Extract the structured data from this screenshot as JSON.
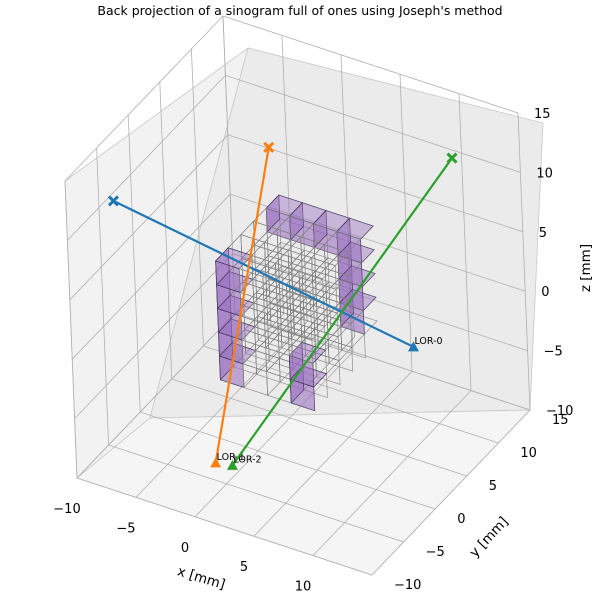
{
  "chart_data": {
    "type": "3d-voxels-lines",
    "title": "Back projection of a sinogram full of ones using Joseph's method",
    "xlabel": "x [mm]",
    "ylabel": "y [mm]",
    "zlabel": "z [mm]",
    "xticks": [
      "−10",
      "−5",
      "0",
      "5",
      "10"
    ],
    "yticks": [
      "−10",
      "−5",
      "0",
      "5",
      "10",
      "15"
    ],
    "zticks": [
      "−10",
      "−5",
      "0",
      "5",
      "10",
      "15"
    ],
    "grid": true,
    "lors": [
      {
        "label": "LOR-0",
        "color": "#1f77b4",
        "start": [
          -11,
          -1,
          8
        ],
        "end": [
          12,
          3,
          1
        ]
      },
      {
        "label": "LOR-1",
        "color": "#ff7f0e",
        "start": [
          -2,
          7,
          11
        ],
        "end": [
          -2,
          -3,
          -10
        ]
      },
      {
        "label": "LOR-2",
        "color": "#2ca02c",
        "start": [
          12,
          10,
          13
        ],
        "end": [
          0,
          -4,
          -9
        ]
      }
    ],
    "voxel_grid": {
      "nx": 4,
      "ny": 5,
      "nz": 5,
      "origin": [
        -3,
        0,
        -5
      ],
      "size": 2
    },
    "filled_voxel_color": "#9467bd",
    "empty_voxel_edge_color": "#808080"
  }
}
